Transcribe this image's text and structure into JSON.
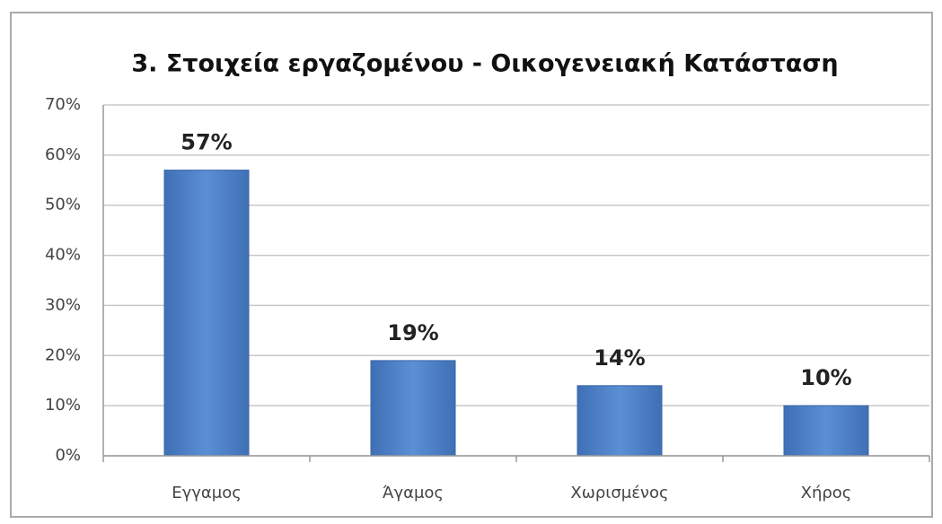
{
  "chart_data": {
    "type": "bar",
    "title": "3. Στοιχεία εργαζομένου - Οικογενειακή Κατάσταση",
    "categories": [
      "Εγγαμος",
      "Άγαμος",
      "Χωρισμένος",
      "Χήρος"
    ],
    "values": [
      57,
      19,
      14,
      10
    ],
    "value_labels": [
      "57%",
      "19%",
      "14%",
      "10%"
    ],
    "color": "#5b8fd4",
    "ylim": [
      0,
      70
    ],
    "yticks": [
      {
        "value": 0,
        "label": "0%"
      },
      {
        "value": 10,
        "label": "10%"
      },
      {
        "value": 20,
        "label": "20%"
      },
      {
        "value": 30,
        "label": "30%"
      },
      {
        "value": 40,
        "label": "40%"
      },
      {
        "value": 50,
        "label": "50%"
      },
      {
        "value": 60,
        "label": "60%"
      },
      {
        "value": 70,
        "label": "70%"
      }
    ],
    "grid": true
  }
}
